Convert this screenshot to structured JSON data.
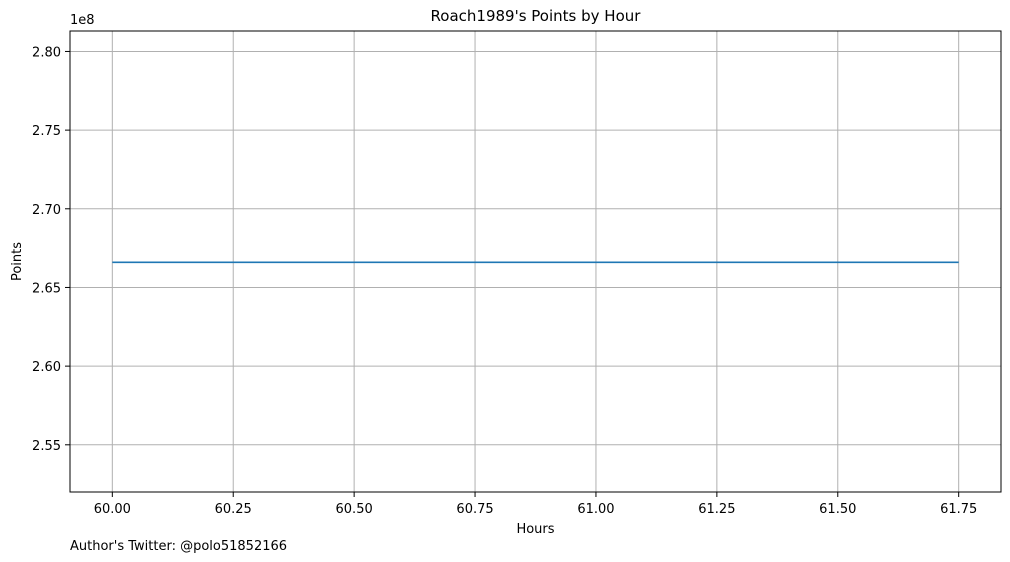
{
  "chart_data": {
    "type": "line",
    "title": "Roach1989's Points by Hour",
    "xlabel": "Hours",
    "ylabel": "Points",
    "y_offset_label": "1e8",
    "x": [
      60.0,
      60.25,
      60.5,
      60.75,
      61.0,
      61.25,
      61.5,
      61.75
    ],
    "series": [
      {
        "values": [
          266600000,
          266600000,
          266600000,
          266600000,
          266600000,
          266600000,
          266600000,
          266600000
        ]
      }
    ],
    "xlim": [
      59.9125,
      61.8375
    ],
    "ylim": [
      252000000,
      281300000
    ],
    "x_ticks": [
      60.0,
      60.25,
      60.5,
      60.75,
      61.0,
      61.25,
      61.5,
      61.75
    ],
    "x_tick_labels": [
      "60.00",
      "60.25",
      "60.50",
      "60.75",
      "61.00",
      "61.25",
      "61.50",
      "61.75"
    ],
    "y_ticks": [
      255000000,
      260000000,
      265000000,
      270000000,
      275000000,
      280000000
    ],
    "y_tick_labels": [
      "2.55",
      "2.60",
      "2.65",
      "2.70",
      "2.75",
      "2.80"
    ],
    "grid": true,
    "line_color": "#1f77b4",
    "grid_color": "#b0b0b0",
    "footnote": "Author's Twitter: @polo51852166"
  }
}
